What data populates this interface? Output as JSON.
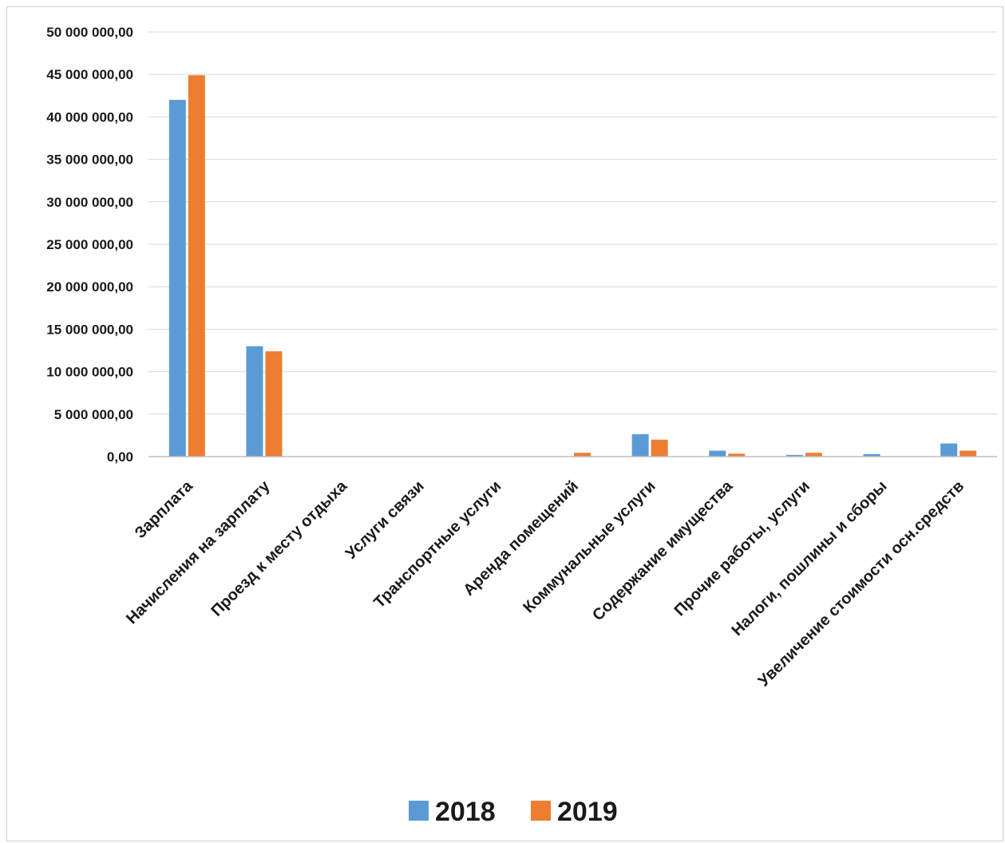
{
  "chart_data": {
    "type": "bar",
    "categories": [
      "Зарплата",
      "Начисления на зарплату",
      "Проезд к месту отдыха",
      "Услуги связи",
      "Транспортные услуги",
      "Аренда помещений",
      "Коммунальные услуги",
      "Содержание имущества",
      "Прочие работы, услуги",
      "Налоги, пошлины и сборы",
      "Увеличение стоимости осн.средств"
    ],
    "series": [
      {
        "name": "2018",
        "color": "#5b9bd5",
        "values": [
          42000000,
          13000000,
          0,
          0,
          0,
          0,
          2650000,
          700000,
          200000,
          300000,
          1550000
        ]
      },
      {
        "name": "2019",
        "color": "#ed7d31",
        "values": [
          44900000,
          12400000,
          0,
          0,
          0,
          450000,
          2000000,
          350000,
          450000,
          0,
          700000
        ]
      }
    ],
    "yticks": [
      "0,00",
      "5 000 000,00",
      "10 000 000,00",
      "15 000 000,00",
      "20 000 000,00",
      "25 000 000,00",
      "30 000 000,00",
      "35 000 000,00",
      "40 000 000,00",
      "45 000 000,00",
      "50 000 000,00"
    ],
    "ylim": [
      0,
      50000000
    ],
    "grid": true,
    "legend_position": "bottom",
    "title": "",
    "xlabel": "",
    "ylabel": ""
  }
}
